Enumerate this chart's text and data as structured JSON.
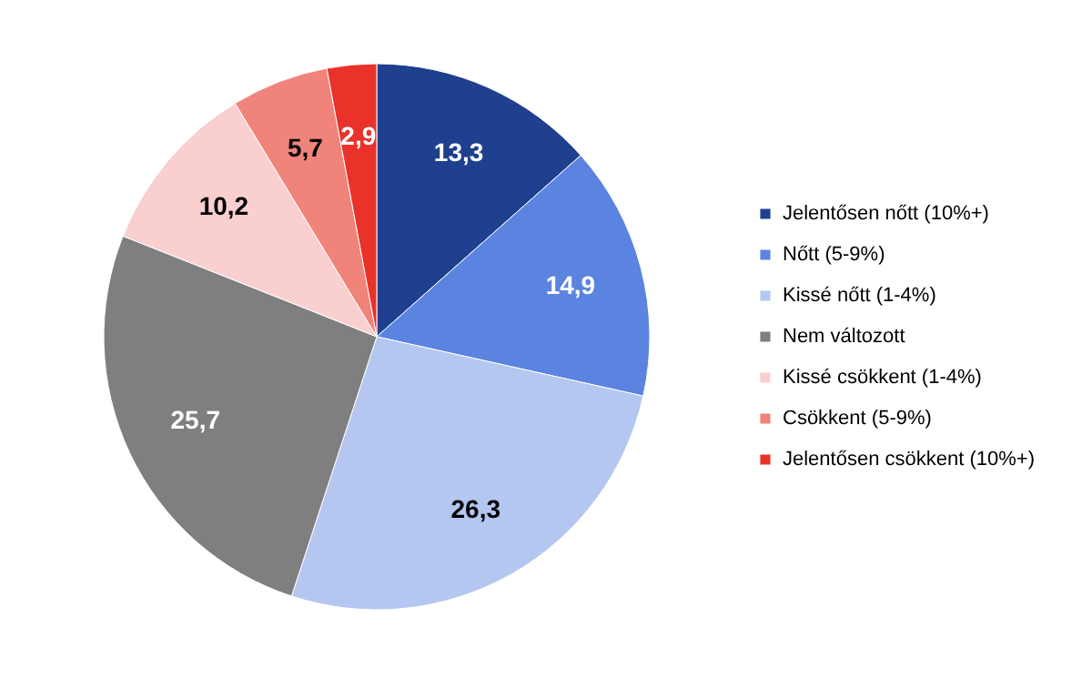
{
  "chart_data": {
    "type": "pie",
    "categories": [
      "Jelentősen nőtt (10%+)",
      "Nőtt (5-9%)",
      "Kissé nőtt (1-4%)",
      "Nem változott",
      "Kissé csökkent (1-4%)",
      "Csökkent (5-9%)",
      "Jelentősen csökkent (10%+)"
    ],
    "values": [
      13.3,
      14.9,
      26.3,
      25.7,
      10.2,
      5.7,
      2.9
    ],
    "colors": [
      "#1f3f8f",
      "#5b84e0",
      "#b4c7f0",
      "#7f7f7f",
      "#f9cfcf",
      "#f0847a",
      "#e8322a"
    ],
    "value_labels": [
      "13,3",
      "14,9",
      "26,3",
      "25,7",
      "10,2",
      "5,7",
      "2,9"
    ],
    "legend": "right"
  }
}
